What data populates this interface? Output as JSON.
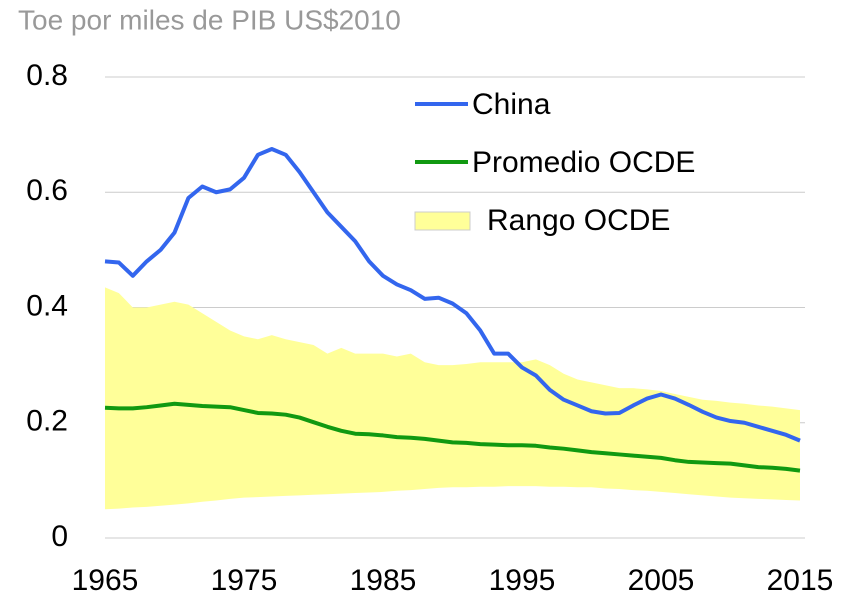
{
  "chart_data": {
    "type": "line",
    "title": "Toe por miles de PIB US$2010",
    "x": [
      1965,
      1966,
      1967,
      1968,
      1969,
      1970,
      1971,
      1972,
      1973,
      1974,
      1975,
      1976,
      1977,
      1978,
      1979,
      1980,
      1981,
      1982,
      1983,
      1984,
      1985,
      1986,
      1987,
      1988,
      1989,
      1990,
      1991,
      1992,
      1993,
      1994,
      1995,
      1996,
      1997,
      1998,
      1999,
      2000,
      2001,
      2002,
      2003,
      2004,
      2005,
      2006,
      2007,
      2008,
      2009,
      2010,
      2011,
      2012,
      2013,
      2014,
      2015
    ],
    "series": [
      {
        "name": "China",
        "color": "#3366ee",
        "values": [
          0.48,
          0.478,
          0.455,
          0.48,
          0.5,
          0.53,
          0.59,
          0.61,
          0.6,
          0.605,
          0.625,
          0.665,
          0.675,
          0.665,
          0.635,
          0.6,
          0.565,
          0.54,
          0.515,
          0.48,
          0.455,
          0.44,
          0.43,
          0.415,
          0.417,
          0.407,
          0.39,
          0.36,
          0.32,
          0.32,
          0.296,
          0.282,
          0.257,
          0.24,
          0.23,
          0.22,
          0.216,
          0.217,
          0.23,
          0.242,
          0.249,
          0.242,
          0.231,
          0.219,
          0.209,
          0.203,
          0.2,
          0.193,
          0.186,
          0.179,
          0.169
        ]
      },
      {
        "name": "Promedio OCDE",
        "color": "#119911",
        "values": [
          0.226,
          0.225,
          0.225,
          0.227,
          0.23,
          0.233,
          0.231,
          0.229,
          0.228,
          0.227,
          0.222,
          0.217,
          0.216,
          0.214,
          0.209,
          0.201,
          0.193,
          0.186,
          0.181,
          0.18,
          0.178,
          0.175,
          0.174,
          0.172,
          0.169,
          0.166,
          0.165,
          0.163,
          0.162,
          0.161,
          0.161,
          0.16,
          0.157,
          0.155,
          0.152,
          0.149,
          0.147,
          0.145,
          0.143,
          0.141,
          0.139,
          0.135,
          0.132,
          0.131,
          0.13,
          0.129,
          0.126,
          0.123,
          0.122,
          0.12,
          0.117
        ]
      },
      {
        "name": "Rango OCDE",
        "color": "#ffff99",
        "type": "band",
        "upper": [
          0.435,
          0.425,
          0.4,
          0.4,
          0.405,
          0.41,
          0.405,
          0.39,
          0.375,
          0.36,
          0.35,
          0.345,
          0.352,
          0.345,
          0.34,
          0.335,
          0.32,
          0.33,
          0.32,
          0.32,
          0.32,
          0.315,
          0.32,
          0.305,
          0.3,
          0.3,
          0.302,
          0.305,
          0.305,
          0.305,
          0.305,
          0.31,
          0.3,
          0.285,
          0.275,
          0.27,
          0.265,
          0.26,
          0.26,
          0.258,
          0.255,
          0.25,
          0.245,
          0.24,
          0.238,
          0.235,
          0.233,
          0.23,
          0.228,
          0.225,
          0.222
        ],
        "lower": [
          0.05,
          0.051,
          0.053,
          0.054,
          0.056,
          0.058,
          0.06,
          0.063,
          0.065,
          0.068,
          0.07,
          0.071,
          0.072,
          0.073,
          0.074,
          0.075,
          0.076,
          0.077,
          0.078,
          0.079,
          0.08,
          0.082,
          0.083,
          0.085,
          0.087,
          0.088,
          0.088,
          0.089,
          0.089,
          0.09,
          0.09,
          0.09,
          0.089,
          0.089,
          0.088,
          0.088,
          0.086,
          0.085,
          0.083,
          0.082,
          0.08,
          0.078,
          0.076,
          0.074,
          0.072,
          0.07,
          0.069,
          0.068,
          0.067,
          0.066,
          0.065
        ]
      }
    ],
    "xlim": [
      1965,
      2015
    ],
    "xticks": [
      1965,
      1975,
      1985,
      1995,
      2005,
      2015
    ],
    "ylim": [
      0,
      0.8
    ],
    "yticks": [
      0,
      0.2,
      0.4,
      0.6,
      0.8
    ],
    "grid": true
  }
}
